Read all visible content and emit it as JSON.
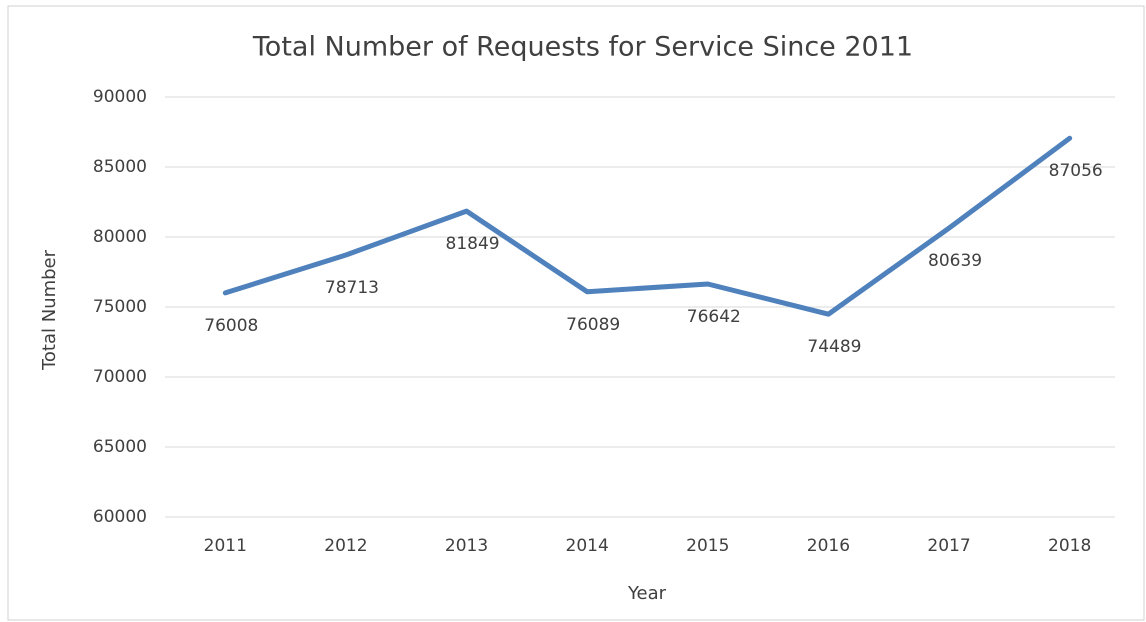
{
  "chart_data": {
    "type": "line",
    "title": "Total Number of Requests for Service Since 2011",
    "x_label": "Year",
    "y_label": "Total Number",
    "categories": [
      "2011",
      "2012",
      "2013",
      "2014",
      "2015",
      "2016",
      "2017",
      "2018"
    ],
    "series": [
      {
        "name": "Total Number",
        "color": "#4f81bd",
        "values": [
          76008,
          78713,
          81849,
          76089,
          76642,
          74489,
          80639,
          87056
        ]
      }
    ],
    "ylim": [
      60000,
      90000
    ],
    "yticks": [
      60000,
      65000,
      70000,
      75000,
      80000,
      85000,
      90000
    ],
    "grid": true
  }
}
